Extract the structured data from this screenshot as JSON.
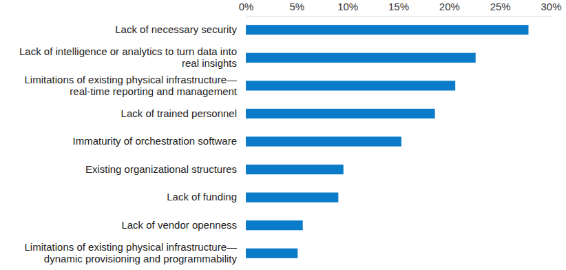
{
  "chart_data": {
    "type": "bar",
    "orientation": "horizontal",
    "grid": false,
    "color": "#0a7bc8",
    "categories": [
      "Lack of necessary security",
      "Lack of intelligence or analytics to turn data into real insights",
      "Limitations of existing physical infrastructure—real-time reporting and management",
      "Lack of trained personnel",
      "Immaturity of orchestration software",
      "Existing organizational structures",
      "Lack of funding",
      "Lack of vendor openness",
      "Limitations of existing physical infrastructure—dynamic provisioning and programmability"
    ],
    "values": [
      27.8,
      22.6,
      20.6,
      18.6,
      15.3,
      9.6,
      9.1,
      5.6,
      5.1
    ],
    "xlim": [
      0,
      30
    ],
    "xticks": [
      {
        "value": 0,
        "label": "0%"
      },
      {
        "value": 5,
        "label": "5%"
      },
      {
        "value": 10,
        "label": "10%"
      },
      {
        "value": 15,
        "label": "15%"
      },
      {
        "value": 20,
        "label": "20%"
      },
      {
        "value": 25,
        "label": "25%"
      },
      {
        "value": 30,
        "label": "30%"
      }
    ]
  }
}
